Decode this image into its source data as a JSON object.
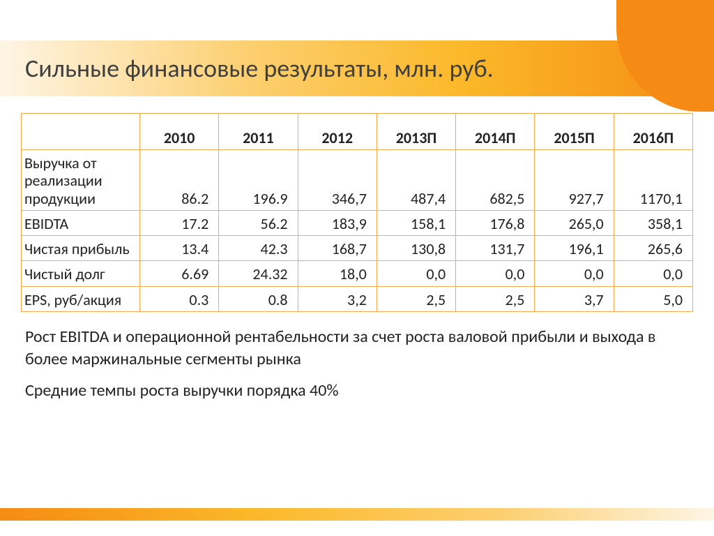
{
  "title": "Сильные финансовые результаты, млн. руб.",
  "table": {
    "headers": [
      "",
      "2010",
      "2011",
      "2012",
      "2013П",
      "2014П",
      "2015П",
      "2016П"
    ],
    "rows": [
      {
        "label": "Выручка от реализации продукции",
        "cells": [
          "86.2",
          "196.9",
          "346,7",
          "487,4",
          "682,5",
          "927,7",
          "1170,1"
        ]
      },
      {
        "label": "EBIDTA",
        "cells": [
          "17.2",
          "56.2",
          "183,9",
          "158,1",
          "176,8",
          "265,0",
          "358,1"
        ]
      },
      {
        "label": "Чистая прибыль",
        "cells": [
          "13.4",
          "42.3",
          "168,7",
          "130,8",
          "131,7",
          "196,1",
          "265,6"
        ]
      },
      {
        "label": "Чистый долг",
        "cells": [
          "6.69",
          "24.32",
          "18,0",
          "0,0",
          "0,0",
          "0,0",
          "0,0"
        ]
      },
      {
        "label": "EPS, руб/акция",
        "cells": [
          "0.3",
          "0.8",
          "3,2",
          "2,5",
          "2,5",
          "3,7",
          "5,0"
        ]
      }
    ],
    "border_color": "#f9a94b",
    "header_fontsize": 22,
    "cell_fontsize": 22
  },
  "notes": [
    "Рост EBITDA и операционной рентабельности за счет роста валовой прибыли и выхода в более маржинальные сегменты рынка",
    "Средние темпы роста выручки порядка 40%"
  ],
  "colors": {
    "gradient_start": "#fef5e6",
    "gradient_mid1": "#fccf6f",
    "gradient_mid2": "#fbb829",
    "gradient_end": "#f58b14",
    "text": "#3f3f3f"
  }
}
